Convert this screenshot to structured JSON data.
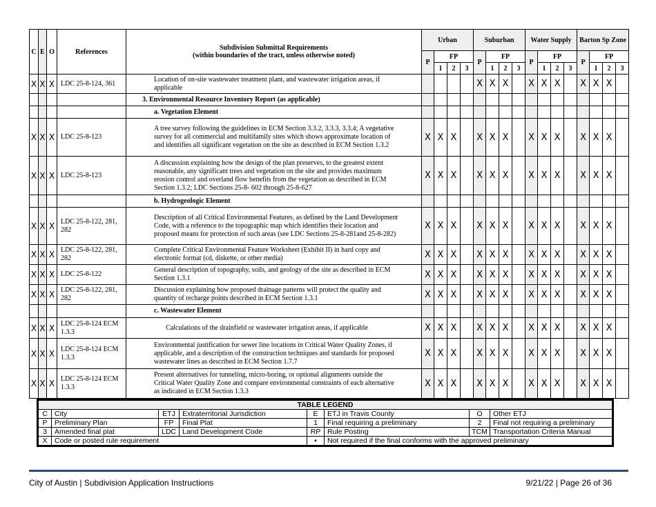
{
  "header": {
    "c": "C",
    "e": "E",
    "o": "O",
    "references": "References",
    "requirements_title": "Subdivision Submittal Requirements",
    "requirements_subtitle": "(within boundaries of the tract, unless otherwise noted)",
    "groups": [
      "Urban",
      "Suburban",
      "Water Supply",
      "Barton Sp Zone"
    ],
    "p": "P",
    "fp": "FP",
    "sub": [
      "1",
      "2",
      "3"
    ]
  },
  "rows": [
    {
      "type": "item",
      "c": "X",
      "e": "X",
      "o": "X",
      "ref": "LDC 25-8-124, 361",
      "text": "Location of on-site wastewater treatment plant, and wastewater irrigation areas, if applicable",
      "marks": [
        "",
        "",
        "",
        "",
        "X",
        "X",
        "X",
        "",
        "X",
        "X",
        "X",
        "",
        "X",
        "X",
        "X",
        ""
      ]
    },
    {
      "type": "heading",
      "text": "3. Environmental Resource Inventory Report (as applicable)",
      "level": 1
    },
    {
      "type": "heading",
      "text": "a. Vegetation Element",
      "level": 2
    },
    {
      "type": "item",
      "c": "X",
      "e": "X",
      "o": "X",
      "ref": "LDC 25-8-123",
      "text": "A tree survey following the guidelines in ECM Section 3.3.2, 3.3.3, 3.3.4; A vegetative survey for all commercial and multifamily sites which shows approximate location of and identifies all significant vegetation on the site as described in ECM Section 1.3.2",
      "marks": [
        "X",
        "X",
        "X",
        "",
        "X",
        "X",
        "X",
        "",
        "X",
        "X",
        "X",
        "",
        "X",
        "X",
        "X",
        ""
      ]
    },
    {
      "type": "item",
      "c": "X",
      "e": "X",
      "o": "X",
      "ref": "LDC 25-8-123",
      "text": "A discussion explaining how the design of the plan preserves, to the greatest extent reasonable, any significant trees and vegetation on the site and provides maximum erosion control and overland flow benefits from the vegetation as described in ECM Section 1.3.2; LDC Sections 25-8- 602 through 25-8-627",
      "marks": [
        "X",
        "X",
        "X",
        "",
        "X",
        "X",
        "X",
        "",
        "X",
        "X",
        "X",
        "",
        "X",
        "X",
        "X",
        ""
      ]
    },
    {
      "type": "heading",
      "text": "b. Hydrogeologic Element",
      "level": 2
    },
    {
      "type": "item",
      "c": "X",
      "e": "X",
      "o": "X",
      "ref": "LDC 25-8-122, 281, 282",
      "text": "Description of all Critical Environmental Features, as defined by the Land Development Code, with a reference to the topographic map which identifies their location and proposed means for protection of such areas (see LDC Sections 25-8-281and 25-8-282)",
      "marks": [
        "X",
        "X",
        "X",
        "",
        "X",
        "X",
        "X",
        "",
        "X",
        "X",
        "X",
        "",
        "X",
        "X",
        "X",
        ""
      ]
    },
    {
      "type": "item",
      "c": "X",
      "e": "X",
      "o": "X",
      "ref": "LDC 25-8-122, 281, 282",
      "text": "Complete Critical Environmental Feature Worksheet (Exhibit II) in hard copy and electronic format (cd, diskette, or other media)",
      "marks": [
        "X",
        "X",
        "X",
        "",
        "X",
        "X",
        "X",
        "",
        "X",
        "X",
        "X",
        "",
        "X",
        "X",
        "X",
        ""
      ]
    },
    {
      "type": "item",
      "c": "X",
      "e": "X",
      "o": "X",
      "ref": "LDC 25-8-122",
      "text": "General description of topography, soils, and geology of the site as described in ECM Section 1.3.1",
      "marks": [
        "X",
        "X",
        "X",
        "",
        "X",
        "X",
        "X",
        "",
        "X",
        "X",
        "X",
        "",
        "X",
        "X",
        "X",
        ""
      ]
    },
    {
      "type": "item",
      "c": "X",
      "e": "X",
      "o": "X",
      "ref": "LDC 25-8-122, 281, 282",
      "text": "Discussion explaining how proposed drainage patterns will protect the quality and quantity of recharge points described in ECM Section 1.3.1",
      "marks": [
        "X",
        "X",
        "X",
        "",
        "X",
        "X",
        "X",
        "",
        "X",
        "X",
        "X",
        "",
        "X",
        "X",
        "X",
        ""
      ]
    },
    {
      "type": "heading",
      "text": "c. Wastewater Element",
      "level": 2
    },
    {
      "type": "item",
      "c": "X",
      "e": "X",
      "o": "X",
      "ref": "LDC 25-8-124 ECM 1.3.3",
      "text": "Calculations of the drainfield or wastewater irrigation areas, if applicable",
      "marks": [
        "X",
        "X",
        "X",
        "",
        "X",
        "X",
        "X",
        "",
        "X",
        "X",
        "X",
        "",
        "X",
        "X",
        "X",
        ""
      ]
    },
    {
      "type": "item",
      "c": "X",
      "e": "X",
      "o": "X",
      "ref": "LDC 25-8-124 ECM 1.3.3",
      "text": "Environmental justification for sewer line locations in Critical Water Quality Zones, if applicable, and a description of the construction techniques and standards for proposed wastewater lines as described in ECM Section 1.7.7",
      "marks": [
        "X",
        "X",
        "X",
        "",
        "X",
        "X",
        "X",
        "",
        "X",
        "X",
        "X",
        "",
        "X",
        "X",
        "X",
        ""
      ]
    },
    {
      "type": "item",
      "c": "X",
      "e": "X",
      "o": "X",
      "ref": "LDC 25-8-124 ECM 1.3.3",
      "text": "Present alternatives for tunneling, micro-boring, or optional alignments outside the Critical Water Quality Zone and compare environmental constraints of each alternative as indicated in ECM Section 1.3.3",
      "marks": [
        "X",
        "X",
        "X",
        "",
        "X",
        "X",
        "X",
        "",
        "X",
        "X",
        "X",
        "",
        "X",
        "X",
        "X",
        ""
      ]
    }
  ],
  "legend": {
    "title": "TABLE LEGEND",
    "rows": [
      [
        [
          "C",
          "City"
        ],
        [
          "ETJ",
          "Extraterritorial Jurisdiction"
        ],
        [
          "E",
          "ETJ in Travis County"
        ],
        [
          "O",
          "Other ETJ"
        ]
      ],
      [
        [
          "P",
          "Preliminary Plan"
        ],
        [
          "FP",
          "Final Plat"
        ],
        [
          "1",
          "Final requiring a preliminary"
        ],
        [
          "2",
          "Final not requiring a preliminary"
        ]
      ],
      [
        [
          "3",
          "Amended final plat"
        ],
        [
          "LDC",
          "Land Development Code"
        ],
        [
          "RP",
          "Rule Posting"
        ],
        [
          "TCM",
          "Transportation Criteria Manual"
        ]
      ]
    ],
    "last": [
      [
        "X",
        "Code or posted rule requirement"
      ],
      [
        "•",
        "Not required if the final conforms with the approved preliminary"
      ]
    ]
  },
  "footer": {
    "left": "City of Austin | Subdivision Application Instructions",
    "right": "9/21/22 | Page 26 of 36",
    "rule_color": "#1f4e79"
  },
  "colors": {
    "shade": "#eeeeee"
  }
}
